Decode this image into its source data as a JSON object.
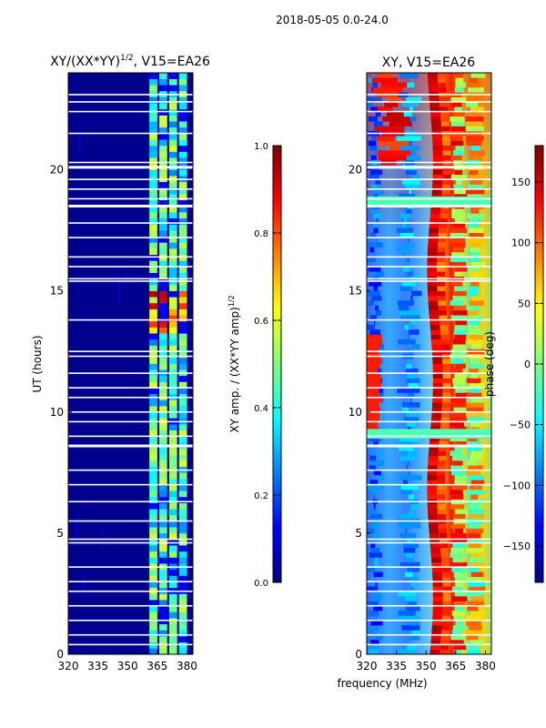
{
  "suptitle": "2018-05-05 0.0-24.0",
  "chart_data": [
    {
      "type": "heatmap",
      "title": "XY/(XX*YY)^(1/2), V15=EA26",
      "title_main": "XY/(XX*YY)",
      "title_exp": "1/2",
      "title_tail": ", V15=EA26",
      "xlabel": "",
      "ylabel": "UT (hours)",
      "xlim": [
        320,
        383
      ],
      "ylim": [
        0,
        24
      ],
      "x_ticks": [
        320,
        335,
        350,
        365,
        380
      ],
      "y_ticks": [
        0,
        5,
        10,
        15,
        20
      ],
      "bright_channels_mhz": [
        [
          361,
          365
        ],
        [
          366,
          370
        ],
        [
          371,
          375
        ],
        [
          376,
          380
        ]
      ],
      "gap_hours": [
        0.4,
        0.8,
        1.4,
        2.0,
        2.6,
        3.0,
        3.6,
        4.6,
        4.75,
        5.5,
        6.3,
        7.0,
        7.6,
        8.6,
        9.0,
        9.6,
        10.0,
        10.6,
        11.0,
        11.6,
        12.3,
        12.5,
        13.8,
        15.4,
        15.5,
        16.0,
        16.4,
        17.2,
        17.8,
        18.5,
        18.8,
        19.2,
        19.6,
        20.1,
        20.3,
        21.5,
        22.4,
        22.8,
        23.1
      ]
    },
    {
      "type": "colorbar",
      "label": "XY amp. / (XX*YY amp)^(1/2)",
      "label_main": "XY amp. / (XX*YY amp)",
      "label_exp": "1/2",
      "range": [
        0.0,
        1.0
      ],
      "ticks": [
        "0.0",
        "0.2",
        "0.4",
        "0.6",
        "0.8",
        "1.0"
      ]
    },
    {
      "type": "heatmap",
      "title": "XY, V15=EA26",
      "xlabel": "frequency (MHz)",
      "ylabel": "",
      "xlim": [
        320,
        383
      ],
      "ylim": [
        0,
        24
      ],
      "x_ticks": [
        320,
        335,
        350,
        365,
        380
      ],
      "y_ticks": [
        0,
        5,
        10,
        15,
        20
      ],
      "gap_hours": [
        0.4,
        0.8,
        1.4,
        2.0,
        2.6,
        3.0,
        3.6,
        4.6,
        4.75,
        5.5,
        6.3,
        7.0,
        7.6,
        8.6,
        9.0,
        9.6,
        10.0,
        10.6,
        11.0,
        11.6,
        12.3,
        12.5,
        13.8,
        15.4,
        15.5,
        16.0,
        16.4,
        17.2,
        17.8,
        18.5,
        18.8,
        19.2,
        19.6,
        20.1,
        20.3,
        21.5,
        22.4,
        22.8,
        23.1
      ]
    },
    {
      "type": "colorbar",
      "label": "phase (deg)",
      "range": [
        -180,
        180
      ],
      "ticks": [
        "−150",
        "−100",
        "−50",
        "0",
        "50",
        "100",
        "150"
      ]
    }
  ]
}
